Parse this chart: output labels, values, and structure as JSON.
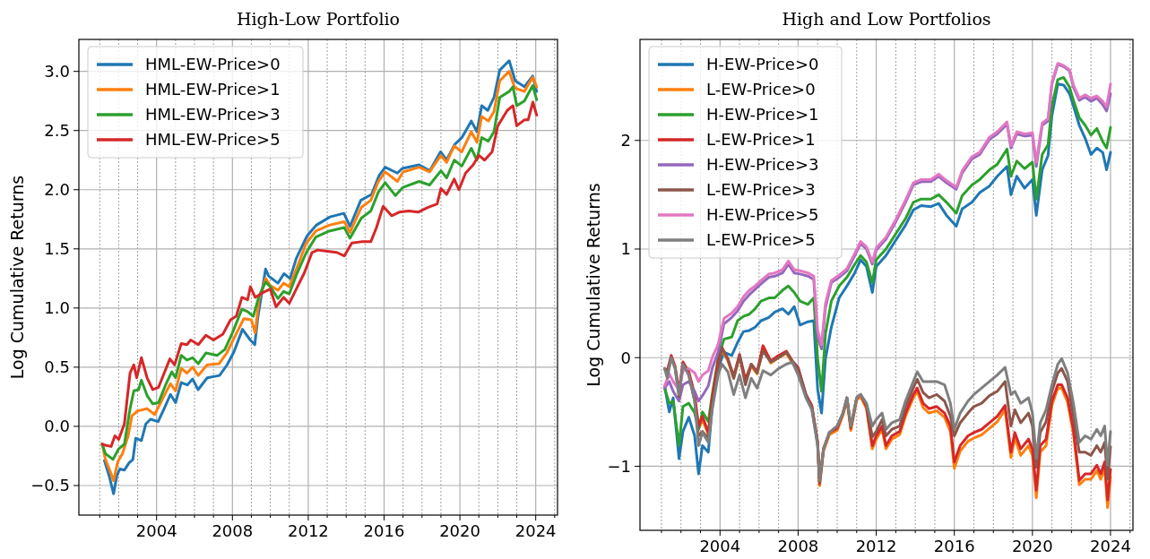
{
  "chart_data": [
    {
      "type": "line",
      "title": "High-Low Portfolio",
      "ylabel": "Log Cumulative Returns",
      "xlim": [
        1999.9,
        2025.15
      ],
      "ylim": [
        -0.75,
        3.27
      ],
      "xticks": [
        {
          "value": 2001,
          "label": null
        },
        {
          "value": 2002,
          "label": null
        },
        {
          "value": 2003,
          "label": null
        },
        2004,
        {
          "value": 2005,
          "label": null
        },
        {
          "value": 2006,
          "label": null
        },
        {
          "value": 2007,
          "label": null
        },
        2008,
        {
          "value": 2009,
          "label": null
        },
        {
          "value": 2010,
          "label": null
        },
        {
          "value": 2011,
          "label": null
        },
        2012,
        {
          "value": 2013,
          "label": null
        },
        {
          "value": 2014,
          "label": null
        },
        {
          "value": 2015,
          "label": null
        },
        2016,
        {
          "value": 2017,
          "label": null
        },
        {
          "value": 2018,
          "label": null
        },
        {
          "value": 2019,
          "label": null
        },
        2020,
        {
          "value": 2021,
          "label": null
        },
        {
          "value": 2022,
          "label": null
        },
        {
          "value": 2023,
          "label": null
        },
        2024,
        {
          "value": 2025,
          "label": null
        }
      ],
      "yticks": [
        {
          "value": -0.5,
          "label": "−0.5"
        },
        {
          "value": 0,
          "label": "0.0"
        },
        0.5,
        {
          "value": 1,
          "label": "1.0"
        },
        1.5,
        {
          "value": 2,
          "label": "2.0"
        },
        2.5,
        {
          "value": 3,
          "label": "3.0"
        }
      ],
      "grid": true,
      "legend": "top left",
      "marker": "none",
      "line_style": "solid",
      "series": [
        {
          "name": "HML-EW-Price>0",
          "color": "#1f77b4",
          "x": [
            2001.25,
            2001.5,
            2001.73,
            2001.9,
            2002.06,
            2002.3,
            2002.54,
            2002.75,
            2002.9,
            2003.2,
            2003.43,
            2003.68,
            2004.08,
            2004.4,
            2004.73,
            2005.0,
            2005.3,
            2005.62,
            2005.9,
            2006.19,
            2006.67,
            2007.32,
            2007.72,
            2008.08,
            2008.53,
            2008.94,
            2009.18,
            2009.34,
            2009.75,
            2009.91,
            2010.4,
            2010.72,
            2011.04,
            2011.37,
            2011.94,
            2012.42,
            2013.15,
            2013.88,
            2014.2,
            2014.77,
            2015.34,
            2015.74,
            2016.06,
            2016.7,
            2016.96,
            2017.85,
            2018.41,
            2018.98,
            2019.3,
            2019.71,
            2020.1,
            2020.6,
            2020.9,
            2021.15,
            2021.47,
            2021.8,
            2022.1,
            2022.6,
            2022.92,
            2023.4,
            2023.84,
            2024.05
          ],
          "values": [
            -0.29,
            -0.42,
            -0.57,
            -0.42,
            -0.36,
            -0.37,
            -0.31,
            -0.28,
            -0.1,
            -0.12,
            0.02,
            0.06,
            0.04,
            0.15,
            0.27,
            0.2,
            0.37,
            0.35,
            0.4,
            0.31,
            0.41,
            0.43,
            0.52,
            0.63,
            0.82,
            0.73,
            0.69,
            0.92,
            1.33,
            1.27,
            1.21,
            1.29,
            1.25,
            1.42,
            1.61,
            1.7,
            1.77,
            1.8,
            1.69,
            1.91,
            1.96,
            2.12,
            2.19,
            2.14,
            2.18,
            2.21,
            2.16,
            2.32,
            2.25,
            2.38,
            2.44,
            2.58,
            2.49,
            2.71,
            2.67,
            2.78,
            3.01,
            3.09,
            2.92,
            2.87,
            2.96,
            2.83
          ]
        },
        {
          "name": "HML-EW-Price>1",
          "color": "#ff7f0e",
          "x": [
            2001.13,
            2001.3,
            2001.55,
            2001.73,
            2001.95,
            2002.2,
            2002.5,
            2002.7,
            2003.0,
            2003.5,
            2003.9,
            2004.4,
            2004.73,
            2005.0,
            2005.3,
            2005.6,
            2005.9,
            2006.2,
            2006.67,
            2007.3,
            2007.7,
            2008.1,
            2008.6,
            2009.0,
            2009.2,
            2009.4,
            2009.75,
            2010.0,
            2010.4,
            2010.7,
            2011.0,
            2011.4,
            2011.9,
            2012.4,
            2013.1,
            2013.9,
            2014.2,
            2014.8,
            2015.3,
            2015.7,
            2016.06,
            2016.7,
            2017.0,
            2017.85,
            2018.4,
            2019.0,
            2019.3,
            2019.7,
            2020.1,
            2020.6,
            2020.9,
            2021.15,
            2021.5,
            2021.8,
            2022.1,
            2022.6,
            2022.9,
            2023.4,
            2023.84,
            2024.05
          ],
          "values": [
            -0.15,
            -0.28,
            -0.38,
            -0.46,
            -0.3,
            -0.23,
            -0.08,
            0.09,
            0.13,
            0.15,
            0.1,
            0.26,
            0.36,
            0.3,
            0.49,
            0.45,
            0.5,
            0.43,
            0.52,
            0.53,
            0.62,
            0.75,
            0.91,
            0.9,
            0.79,
            1.07,
            1.25,
            1.19,
            1.15,
            1.21,
            1.18,
            1.34,
            1.55,
            1.65,
            1.7,
            1.73,
            1.64,
            1.85,
            1.91,
            2.07,
            2.15,
            2.07,
            2.15,
            2.19,
            2.15,
            2.29,
            2.23,
            2.37,
            2.32,
            2.49,
            2.4,
            2.62,
            2.58,
            2.66,
            2.92,
            3.0,
            2.86,
            2.83,
            2.95,
            2.87
          ]
        },
        {
          "name": "HML-EW-Price>3",
          "color": "#2ca02c",
          "x": [
            2001.13,
            2001.3,
            2001.7,
            2002.0,
            2002.3,
            2002.6,
            2002.8,
            2003.05,
            2003.2,
            2003.5,
            2003.8,
            2004.1,
            2004.5,
            2004.8,
            2005.0,
            2005.3,
            2005.6,
            2005.9,
            2006.2,
            2006.6,
            2007.2,
            2007.6,
            2008.0,
            2008.5,
            2008.8,
            2009.1,
            2009.4,
            2009.75,
            2010.0,
            2010.4,
            2010.7,
            2011.0,
            2011.4,
            2011.9,
            2012.4,
            2013.1,
            2013.9,
            2014.2,
            2014.8,
            2015.3,
            2015.7,
            2016.06,
            2016.6,
            2017.0,
            2017.85,
            2018.4,
            2019.0,
            2019.3,
            2019.7,
            2020.1,
            2020.6,
            2020.9,
            2021.15,
            2021.5,
            2021.8,
            2022.1,
            2022.6,
            2022.8,
            2023.0,
            2023.4,
            2023.84,
            2024.05
          ],
          "values": [
            -0.15,
            -0.23,
            -0.28,
            -0.19,
            -0.15,
            0.15,
            0.3,
            0.31,
            0.39,
            0.26,
            0.19,
            0.2,
            0.36,
            0.46,
            0.41,
            0.6,
            0.56,
            0.58,
            0.53,
            0.62,
            0.6,
            0.65,
            0.79,
            0.99,
            0.97,
            0.93,
            1.1,
            1.22,
            1.18,
            1.08,
            1.14,
            1.12,
            1.29,
            1.47,
            1.6,
            1.65,
            1.68,
            1.59,
            1.76,
            1.82,
            1.98,
            2.06,
            1.95,
            2.02,
            2.07,
            2.04,
            2.16,
            2.1,
            2.25,
            2.2,
            2.35,
            2.25,
            2.44,
            2.41,
            2.49,
            2.78,
            2.83,
            2.87,
            2.71,
            2.75,
            2.88,
            2.76
          ]
        },
        {
          "name": "HML-EW-Price>5",
          "color": "#d62728",
          "x": [
            2001.13,
            2001.3,
            2001.6,
            2001.8,
            2002.0,
            2002.3,
            2002.6,
            2002.8,
            2002.95,
            2003.2,
            2003.5,
            2003.8,
            2004.1,
            2004.4,
            2004.7,
            2004.95,
            2005.3,
            2005.6,
            2005.8,
            2006.2,
            2006.6,
            2007.0,
            2007.5,
            2007.9,
            2008.2,
            2008.5,
            2008.8,
            2008.95,
            2009.2,
            2009.6,
            2010.0,
            2010.3,
            2010.7,
            2011.0,
            2011.4,
            2011.8,
            2012.2,
            2012.5,
            2013.0,
            2013.5,
            2013.9,
            2014.3,
            2014.8,
            2015.3,
            2015.6,
            2015.95,
            2016.4,
            2016.8,
            2017.3,
            2017.8,
            2018.3,
            2018.8,
            2019.0,
            2019.3,
            2019.7,
            2019.95,
            2020.3,
            2020.7,
            2021.0,
            2021.3,
            2021.7,
            2022.0,
            2022.5,
            2022.8,
            2023.0,
            2023.4,
            2023.6,
            2023.85,
            2024.05
          ],
          "values": [
            -0.15,
            -0.16,
            -0.17,
            -0.08,
            -0.11,
            0.02,
            0.45,
            0.52,
            0.41,
            0.58,
            0.41,
            0.31,
            0.33,
            0.45,
            0.57,
            0.52,
            0.7,
            0.69,
            0.73,
            0.69,
            0.77,
            0.73,
            0.78,
            0.9,
            0.93,
            1.09,
            1.07,
            1.18,
            1.09,
            1.13,
            1.16,
            1.01,
            1.09,
            1.04,
            1.17,
            1.3,
            1.47,
            1.49,
            1.48,
            1.47,
            1.44,
            1.55,
            1.56,
            1.56,
            1.68,
            1.86,
            1.78,
            1.81,
            1.82,
            1.81,
            1.85,
            1.88,
            2.01,
            1.96,
            2.09,
            2.0,
            2.14,
            2.21,
            2.29,
            2.25,
            2.32,
            2.54,
            2.67,
            2.71,
            2.54,
            2.59,
            2.59,
            2.74,
            2.63
          ]
        }
      ]
    },
    {
      "type": "line",
      "title": "High and Low Portfolios",
      "ylabel": "Log Cumulative Returns",
      "xlim": [
        1999.9,
        2025.15
      ],
      "ylim": [
        -1.59,
        2.93
      ],
      "xticks": [
        {
          "value": 2001,
          "label": null
        },
        {
          "value": 2002,
          "label": null
        },
        {
          "value": 2003,
          "label": null
        },
        2004,
        {
          "value": 2005,
          "label": null
        },
        {
          "value": 2006,
          "label": null
        },
        {
          "value": 2007,
          "label": null
        },
        2008,
        {
          "value": 2009,
          "label": null
        },
        {
          "value": 2010,
          "label": null
        },
        {
          "value": 2011,
          "label": null
        },
        2012,
        {
          "value": 2013,
          "label": null
        },
        {
          "value": 2014,
          "label": null
        },
        {
          "value": 2015,
          "label": null
        },
        2016,
        {
          "value": 2017,
          "label": null
        },
        {
          "value": 2018,
          "label": null
        },
        {
          "value": 2019,
          "label": null
        },
        2020,
        {
          "value": 2021,
          "label": null
        },
        {
          "value": 2022,
          "label": null
        },
        {
          "value": 2023,
          "label": null
        },
        2024,
        {
          "value": 2025,
          "label": null
        }
      ],
      "yticks": [
        {
          "value": -1,
          "label": "−1"
        },
        0,
        1,
        2
      ],
      "grid": true,
      "legend": "top left",
      "marker": "none",
      "line_style": "solid",
      "x": [
        2001.16,
        2001.3,
        2001.5,
        2001.7,
        2001.9,
        2002.1,
        2002.4,
        2002.7,
        2002.9,
        2003.1,
        2003.4,
        2003.6,
        2003.9,
        2004.1,
        2004.4,
        2004.7,
        2005.0,
        2005.3,
        2005.6,
        2005.9,
        2006.2,
        2006.6,
        2007.0,
        2007.4,
        2007.7,
        2008.0,
        2008.4,
        2008.7,
        2009.0,
        2009.1,
        2009.3,
        2009.6,
        2010.0,
        2010.3,
        2010.5,
        2010.7,
        2011.0,
        2011.2,
        2011.5,
        2011.8,
        2012.0,
        2012.3,
        2012.5,
        2012.8,
        2013.2,
        2013.5,
        2013.9,
        2014.1,
        2014.4,
        2014.7,
        2015.1,
        2015.5,
        2015.8,
        2016.0,
        2016.3,
        2016.7,
        2017.0,
        2017.4,
        2017.8,
        2018.2,
        2018.6,
        2018.9,
        2019.1,
        2019.4,
        2019.8,
        2020.0,
        2020.2,
        2020.4,
        2020.7,
        2021.0,
        2021.3,
        2021.5,
        2021.8,
        2022.1,
        2022.4,
        2022.7,
        2023.0,
        2023.3,
        2023.5,
        2023.7,
        2023.85,
        2024.0
      ],
      "series": [
        {
          "name": "H-EW-Price>0",
          "color": "#1f77b4",
          "x": [
            2001.16,
            2001.4,
            2001.6,
            2001.9,
            2002.1,
            2002.4,
            2002.7,
            2002.9,
            2003.1,
            2003.4,
            2003.6,
            2003.9,
            2004.2,
            2004.6,
            2004.9,
            2005.2,
            2005.5,
            2005.8,
            2006.1,
            2006.5,
            2006.8,
            2007.2,
            2007.5,
            2007.8,
            2008.1,
            2008.5,
            2008.8,
            2009.0,
            2009.2,
            2009.4,
            2009.7,
            2010.1,
            2010.5,
            2010.9,
            2011.2,
            2011.5,
            2011.8,
            2012.0,
            2012.5,
            2013.0,
            2013.5,
            2013.9,
            2014.3,
            2014.8,
            2015.2,
            2015.6,
            2016.1,
            2016.4,
            2016.9,
            2017.3,
            2017.8,
            2018.2,
            2018.7,
            2018.9,
            2019.2,
            2019.6,
            2020.0,
            2020.2,
            2020.5,
            2020.8,
            2021.0,
            2021.3,
            2021.6,
            2021.9,
            2022.1,
            2022.4,
            2022.7,
            2023.0,
            2023.3,
            2023.6,
            2023.8,
            2024.0
          ],
          "values": [
            -0.26,
            -0.5,
            -0.37,
            -0.93,
            -0.68,
            -0.55,
            -0.72,
            -1.07,
            -0.81,
            -0.87,
            -0.45,
            -0.1,
            0.05,
            0.02,
            0.14,
            0.24,
            0.25,
            0.28,
            0.34,
            0.37,
            0.42,
            0.45,
            0.4,
            0.47,
            0.3,
            0.33,
            0.34,
            -0.29,
            -0.51,
            -0.01,
            0.28,
            0.55,
            0.66,
            0.78,
            0.9,
            0.84,
            0.6,
            0.84,
            0.94,
            1.08,
            1.22,
            1.36,
            1.4,
            1.39,
            1.42,
            1.31,
            1.21,
            1.37,
            1.43,
            1.52,
            1.58,
            1.67,
            1.76,
            1.5,
            1.67,
            1.56,
            1.64,
            1.31,
            1.73,
            1.86,
            2.23,
            2.52,
            2.51,
            2.43,
            2.32,
            2.14,
            2.02,
            1.87,
            1.93,
            1.89,
            1.73,
            1.89
          ]
        },
        {
          "name": "L-EW-Price>0",
          "color": "#ff7f0e",
          "values": [
            null,
            null,
            null,
            null,
            null,
            null,
            null,
            -0.36,
            -0.66,
            -0.57,
            -0.71,
            -0.39,
            -0.06,
            0.07,
            -0.03,
            -0.19,
            0.01,
            -0.22,
            -0.08,
            -0.15,
            0.09,
            -0.05,
            0.0,
            0.04,
            -0.05,
            -0.11,
            -0.36,
            -0.46,
            -0.8,
            -1.18,
            -0.86,
            -0.71,
            -0.67,
            -0.53,
            -0.39,
            -0.67,
            -0.39,
            -0.36,
            -0.47,
            -0.84,
            -0.75,
            -0.66,
            -0.84,
            -0.75,
            -0.71,
            -0.54,
            -0.37,
            -0.31,
            -0.46,
            -0.51,
            -0.49,
            -0.55,
            -0.68,
            -1.02,
            -0.86,
            -0.77,
            -0.74,
            -0.71,
            -0.65,
            -0.59,
            -0.48,
            -0.92,
            -0.74,
            -0.9,
            -0.81,
            -0.9,
            -1.29,
            -0.87,
            -0.81,
            -0.44,
            -0.28,
            -0.28,
            -0.41,
            -0.7,
            -1.17,
            -1.12,
            -1.12,
            -1.04,
            -1.12,
            -1.01,
            -1.38,
            -1.1
          ]
        },
        {
          "name": "H-EW-Price>1",
          "color": "#2ca02c",
          "x": [
            2001.16,
            2001.4,
            2001.6,
            2001.9,
            2002.1,
            2002.4,
            2002.7,
            2002.9,
            2003.1,
            2003.4,
            2003.6,
            2003.9,
            2004.2,
            2004.6,
            2004.9,
            2005.2,
            2005.5,
            2005.8,
            2006.1,
            2006.5,
            2006.8,
            2007.2,
            2007.5,
            2007.8,
            2008.1,
            2008.5,
            2008.8,
            2009.0,
            2009.2,
            2009.4,
            2009.7,
            2010.1,
            2010.5,
            2010.9,
            2011.2,
            2011.5,
            2011.8,
            2012.0,
            2012.5,
            2013.0,
            2013.5,
            2013.9,
            2014.3,
            2014.8,
            2015.2,
            2015.6,
            2016.1,
            2016.4,
            2016.9,
            2017.3,
            2017.8,
            2018.2,
            2018.7,
            2018.9,
            2019.2,
            2019.6,
            2020.0,
            2020.2,
            2020.5,
            2020.8,
            2021.0,
            2021.3,
            2021.6,
            2021.9,
            2022.1,
            2022.4,
            2022.7,
            2023.0,
            2023.3,
            2023.6,
            2023.8,
            2024.0
          ],
          "values": [
            -0.28,
            -0.42,
            -0.4,
            -0.81,
            -0.45,
            -0.42,
            -0.51,
            -0.66,
            -0.5,
            -0.59,
            -0.34,
            -0.01,
            0.17,
            0.19,
            0.34,
            0.38,
            0.4,
            0.45,
            0.52,
            0.55,
            0.55,
            0.62,
            0.66,
            0.6,
            0.52,
            0.49,
            0.55,
            -0.01,
            -0.31,
            0.22,
            0.52,
            0.66,
            0.74,
            0.86,
            0.94,
            0.88,
            0.69,
            0.9,
            1.0,
            1.14,
            1.28,
            1.43,
            1.46,
            1.46,
            1.5,
            1.43,
            1.33,
            1.49,
            1.59,
            1.64,
            1.73,
            1.78,
            1.92,
            1.67,
            1.81,
            1.74,
            1.8,
            1.46,
            1.87,
            1.96,
            2.32,
            2.56,
            2.58,
            2.49,
            2.37,
            2.21,
            2.14,
            2.05,
            2.11,
            1.99,
            1.93,
            2.12
          ]
        },
        {
          "name": "L-EW-Price>1",
          "color": "#d62728",
          "values": [
            -0.1,
            -0.12,
            0.02,
            -0.08,
            -0.31,
            -0.04,
            -0.13,
            -0.34,
            -0.63,
            -0.54,
            -0.69,
            -0.37,
            -0.04,
            0.09,
            -0.01,
            -0.17,
            0.03,
            -0.2,
            -0.06,
            -0.13,
            0.11,
            -0.03,
            0.02,
            0.06,
            -0.03,
            -0.09,
            -0.34,
            -0.44,
            -0.78,
            -1.16,
            -0.84,
            -0.69,
            -0.65,
            -0.51,
            -0.37,
            -0.65,
            -0.37,
            -0.34,
            -0.45,
            -0.81,
            -0.72,
            -0.63,
            -0.81,
            -0.72,
            -0.68,
            -0.51,
            -0.34,
            -0.28,
            -0.42,
            -0.47,
            -0.45,
            -0.51,
            -0.63,
            -0.96,
            -0.81,
            -0.72,
            -0.69,
            -0.66,
            -0.6,
            -0.54,
            -0.44,
            -0.87,
            -0.69,
            -0.84,
            -0.75,
            -0.84,
            -1.22,
            -0.81,
            -0.75,
            -0.4,
            -0.25,
            -0.25,
            -0.37,
            -0.66,
            -1.13,
            -1.07,
            -1.07,
            -0.99,
            -1.07,
            -0.96,
            -1.31,
            -1.03
          ]
        },
        {
          "name": "H-EW-Price>3",
          "color": "#9467bd",
          "x": [
            2001.16,
            2001.4,
            2001.6,
            2001.9,
            2002.1,
            2002.4,
            2002.7,
            2002.9,
            2003.1,
            2003.4,
            2003.6,
            2003.9,
            2004.2,
            2004.6,
            2004.9,
            2005.2,
            2005.5,
            2005.8,
            2006.1,
            2006.5,
            2006.8,
            2007.2,
            2007.5,
            2007.8,
            2008.1,
            2008.5,
            2008.8,
            2009.0,
            2009.2,
            2009.4,
            2009.7,
            2010.1,
            2010.5,
            2010.9,
            2011.2,
            2011.5,
            2011.8,
            2012.0,
            2012.5,
            2013.0,
            2013.5,
            2013.9,
            2014.3,
            2014.8,
            2015.2,
            2015.6,
            2016.1,
            2016.4,
            2016.9,
            2017.3,
            2017.8,
            2018.2,
            2018.7,
            2018.9,
            2019.2,
            2019.6,
            2020.0,
            2020.2,
            2020.5,
            2020.8,
            2021.0,
            2021.3,
            2021.6,
            2021.9,
            2022.1,
            2022.4,
            2022.7,
            2023.0,
            2023.3,
            2023.6,
            2023.8,
            2024.0
          ],
          "values": [
            -0.28,
            -0.22,
            -0.31,
            -0.4,
            -0.25,
            -0.22,
            -0.31,
            -0.4,
            -0.35,
            -0.26,
            -0.1,
            0.05,
            0.31,
            0.37,
            0.43,
            0.52,
            0.58,
            0.63,
            0.68,
            0.74,
            0.75,
            0.78,
            0.86,
            0.78,
            0.77,
            0.75,
            0.72,
            0.19,
            0.08,
            0.46,
            0.69,
            0.74,
            0.8,
            0.94,
            1.05,
            1.0,
            0.86,
            0.99,
            1.09,
            1.25,
            1.43,
            1.59,
            1.62,
            1.62,
            1.67,
            1.61,
            1.55,
            1.7,
            1.83,
            1.87,
            2.01,
            2.06,
            2.15,
            1.93,
            2.06,
            2.04,
            2.05,
            1.76,
            2.14,
            2.18,
            2.52,
            2.7,
            2.68,
            2.64,
            2.49,
            2.37,
            2.4,
            2.36,
            2.39,
            2.33,
            2.27,
            2.43
          ]
        },
        {
          "name": "L-EW-Price>3",
          "color": "#8c564b",
          "values": [
            -0.1,
            -0.15,
            0.0,
            -0.1,
            -0.36,
            -0.06,
            -0.16,
            -0.4,
            -0.72,
            -0.68,
            -0.74,
            -0.45,
            -0.1,
            0.09,
            -0.01,
            -0.19,
            0.02,
            -0.25,
            -0.06,
            -0.14,
            0.06,
            -0.04,
            0.0,
            0.05,
            -0.03,
            -0.1,
            -0.34,
            -0.45,
            -0.78,
            -1.15,
            -0.84,
            -0.69,
            -0.63,
            -0.51,
            -0.37,
            -0.64,
            -0.37,
            -0.34,
            -0.43,
            -0.73,
            -0.68,
            -0.57,
            -0.72,
            -0.66,
            -0.63,
            -0.45,
            -0.28,
            -0.2,
            -0.32,
            -0.37,
            -0.34,
            -0.4,
            -0.54,
            -0.72,
            -0.6,
            -0.51,
            -0.45,
            -0.42,
            -0.35,
            -0.31,
            -0.22,
            -0.63,
            -0.48,
            -0.6,
            -0.51,
            -0.63,
            -1.01,
            -0.69,
            -0.59,
            -0.31,
            -0.14,
            -0.1,
            -0.22,
            -0.54,
            -0.87,
            -0.87,
            -0.9,
            -0.81,
            -0.87,
            -0.78,
            -1.12,
            -0.82
          ]
        },
        {
          "name": "H-EW-Price>5",
          "color": "#e377c2",
          "x": [
            2001.16,
            2001.4,
            2001.6,
            2001.9,
            2002.1,
            2002.4,
            2002.7,
            2002.9,
            2003.1,
            2003.4,
            2003.6,
            2003.9,
            2004.2,
            2004.6,
            2004.9,
            2005.2,
            2005.5,
            2005.8,
            2006.1,
            2006.5,
            2006.8,
            2007.2,
            2007.5,
            2007.8,
            2008.1,
            2008.5,
            2008.8,
            2009.0,
            2009.2,
            2009.4,
            2009.7,
            2010.1,
            2010.5,
            2010.9,
            2011.2,
            2011.5,
            2011.8,
            2012.0,
            2012.5,
            2013.0,
            2013.5,
            2013.9,
            2014.3,
            2014.8,
            2015.2,
            2015.6,
            2016.1,
            2016.4,
            2016.9,
            2017.3,
            2017.8,
            2018.2,
            2018.7,
            2018.9,
            2019.2,
            2019.6,
            2020.0,
            2020.2,
            2020.5,
            2020.8,
            2021.0,
            2021.3,
            2021.6,
            2021.9,
            2022.1,
            2022.4,
            2022.7,
            2023.0,
            2023.3,
            2023.6,
            2023.8,
            2024.0
          ],
          "values": [
            -0.26,
            -0.15,
            -0.22,
            -0.3,
            -0.12,
            -0.1,
            -0.14,
            -0.22,
            -0.16,
            -0.12,
            0.0,
            0.12,
            0.36,
            0.41,
            0.47,
            0.56,
            0.62,
            0.66,
            0.71,
            0.77,
            0.78,
            0.81,
            0.89,
            0.81,
            0.8,
            0.78,
            0.75,
            0.25,
            0.12,
            0.5,
            0.71,
            0.76,
            0.82,
            0.96,
            1.07,
            1.02,
            0.88,
            1.01,
            1.11,
            1.27,
            1.45,
            1.61,
            1.64,
            1.64,
            1.69,
            1.63,
            1.57,
            1.72,
            1.85,
            1.89,
            2.03,
            2.08,
            2.17,
            1.95,
            2.08,
            2.06,
            2.07,
            1.8,
            2.16,
            2.2,
            2.54,
            2.71,
            2.69,
            2.65,
            2.51,
            2.39,
            2.42,
            2.39,
            2.41,
            2.36,
            2.31,
            2.52
          ]
        },
        {
          "name": "L-EW-Price>5",
          "color": "#7f7f7f",
          "values": [
            -0.1,
            -0.19,
            0.0,
            -0.1,
            -0.34,
            -0.06,
            -0.16,
            -0.4,
            -0.81,
            -0.69,
            -0.78,
            -0.48,
            -0.16,
            -0.06,
            -0.13,
            -0.34,
            -0.16,
            -0.37,
            -0.19,
            -0.28,
            -0.12,
            -0.16,
            -0.1,
            -0.06,
            -0.04,
            -0.16,
            -0.37,
            -0.48,
            -0.81,
            -1.13,
            -0.84,
            -0.69,
            -0.63,
            -0.51,
            -0.37,
            -0.63,
            -0.37,
            -0.34,
            -0.42,
            -0.63,
            -0.57,
            -0.51,
            -0.66,
            -0.6,
            -0.57,
            -0.4,
            -0.22,
            -0.13,
            -0.22,
            -0.22,
            -0.22,
            -0.25,
            -0.42,
            -0.66,
            -0.51,
            -0.4,
            -0.34,
            -0.28,
            -0.22,
            -0.16,
            -0.09,
            -0.34,
            -0.31,
            -0.42,
            -0.37,
            -0.51,
            -0.93,
            -0.6,
            -0.48,
            -0.25,
            -0.06,
            -0.01,
            -0.14,
            -0.42,
            -0.78,
            -0.72,
            -0.75,
            -0.66,
            -0.72,
            -0.63,
            -0.99,
            -0.68
          ]
        }
      ]
    }
  ]
}
